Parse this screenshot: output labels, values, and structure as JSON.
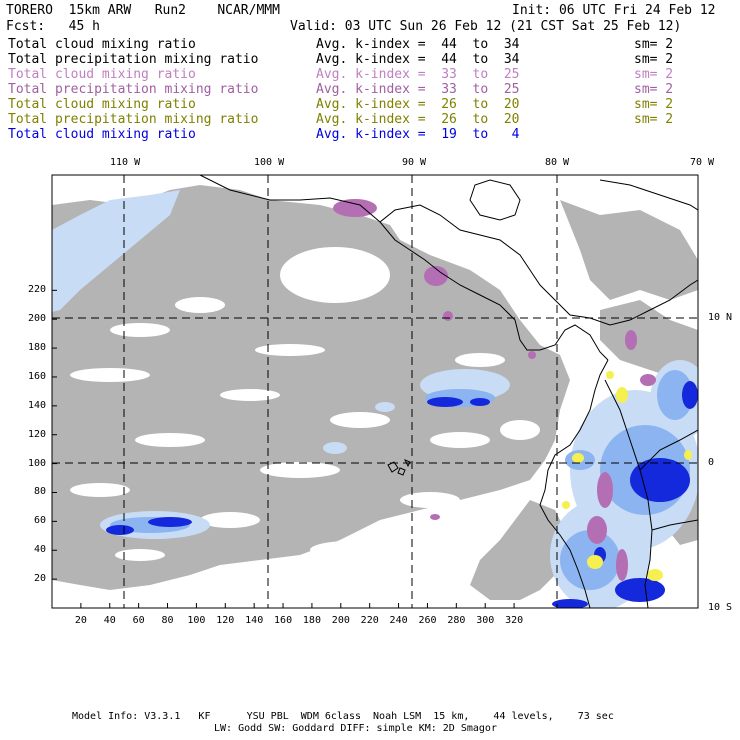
{
  "header": {
    "model": "TORERO  15km ARW   Run2    NCAR/MMM",
    "init": "Init: 06 UTC Fri 24 Feb 12",
    "fcst": "Fcst:   45 h",
    "valid": "Valid: 03 UTC Sun 26 Feb 12 (21 CST Sat 25 Feb 12)"
  },
  "legend": [
    {
      "field": "Total cloud mixing ratio",
      "range": "Avg. k-index =  44  to  34",
      "sm": "sm= 2",
      "color": "#000000"
    },
    {
      "field": "Total precipitation mixing ratio",
      "range": "Avg. k-index =  44  to  34",
      "sm": "sm= 2",
      "color": "#000000"
    },
    {
      "field": "Total cloud mixing ratio",
      "range": "Avg. k-index =  33  to  25",
      "sm": "sm= 2",
      "color": "#c080c0"
    },
    {
      "field": "Total precipitation mixing ratio",
      "range": "Avg. k-index =  33  to  25",
      "sm": "sm= 2",
      "color": "#a060a0"
    },
    {
      "field": "Total cloud mixing ratio",
      "range": "Avg. k-index =  26  to  20",
      "sm": "sm= 2",
      "color": "#808000"
    },
    {
      "field": "Total precipitation mixing ratio",
      "range": "Avg. k-index =  26  to  20",
      "sm": "sm= 2",
      "color": "#808000"
    },
    {
      "field": "Total cloud mixing ratio",
      "range": "Avg. k-index =  19  to   4",
      "sm": "",
      "color": "#0000e0"
    }
  ],
  "lon_labels": [
    "110 W",
    "100 W",
    "90 W",
    "80 W",
    "70 W"
  ],
  "lat_labels": [
    "10 N",
    "0",
    "10 S"
  ],
  "x_ticks": [
    "20",
    "40",
    "60",
    "80",
    "100",
    "120",
    "140",
    "160",
    "180",
    "200",
    "220",
    "240",
    "260",
    "280",
    "300",
    "320"
  ],
  "y_ticks": [
    "20",
    "40",
    "60",
    "80",
    "100",
    "120",
    "140",
    "160",
    "180",
    "200",
    "220"
  ],
  "footer": {
    "line1": "Model Info: V3.3.1   KF      YSU PBL  WDM 6class  Noah LSM  15 km,    44 levels,    73 sec",
    "line2": "LW: Godd SW: Goddard DIFF: simple KM: 2D Smagor"
  },
  "colors": {
    "cloud_gray": "#b4b4b4",
    "light_blue": "#c8dcf5",
    "mid_blue": "#8cb4f0",
    "deep_blue": "#1428dc",
    "purple": "#b46eb4",
    "yellow": "#f5f050",
    "coast": "#000000"
  }
}
